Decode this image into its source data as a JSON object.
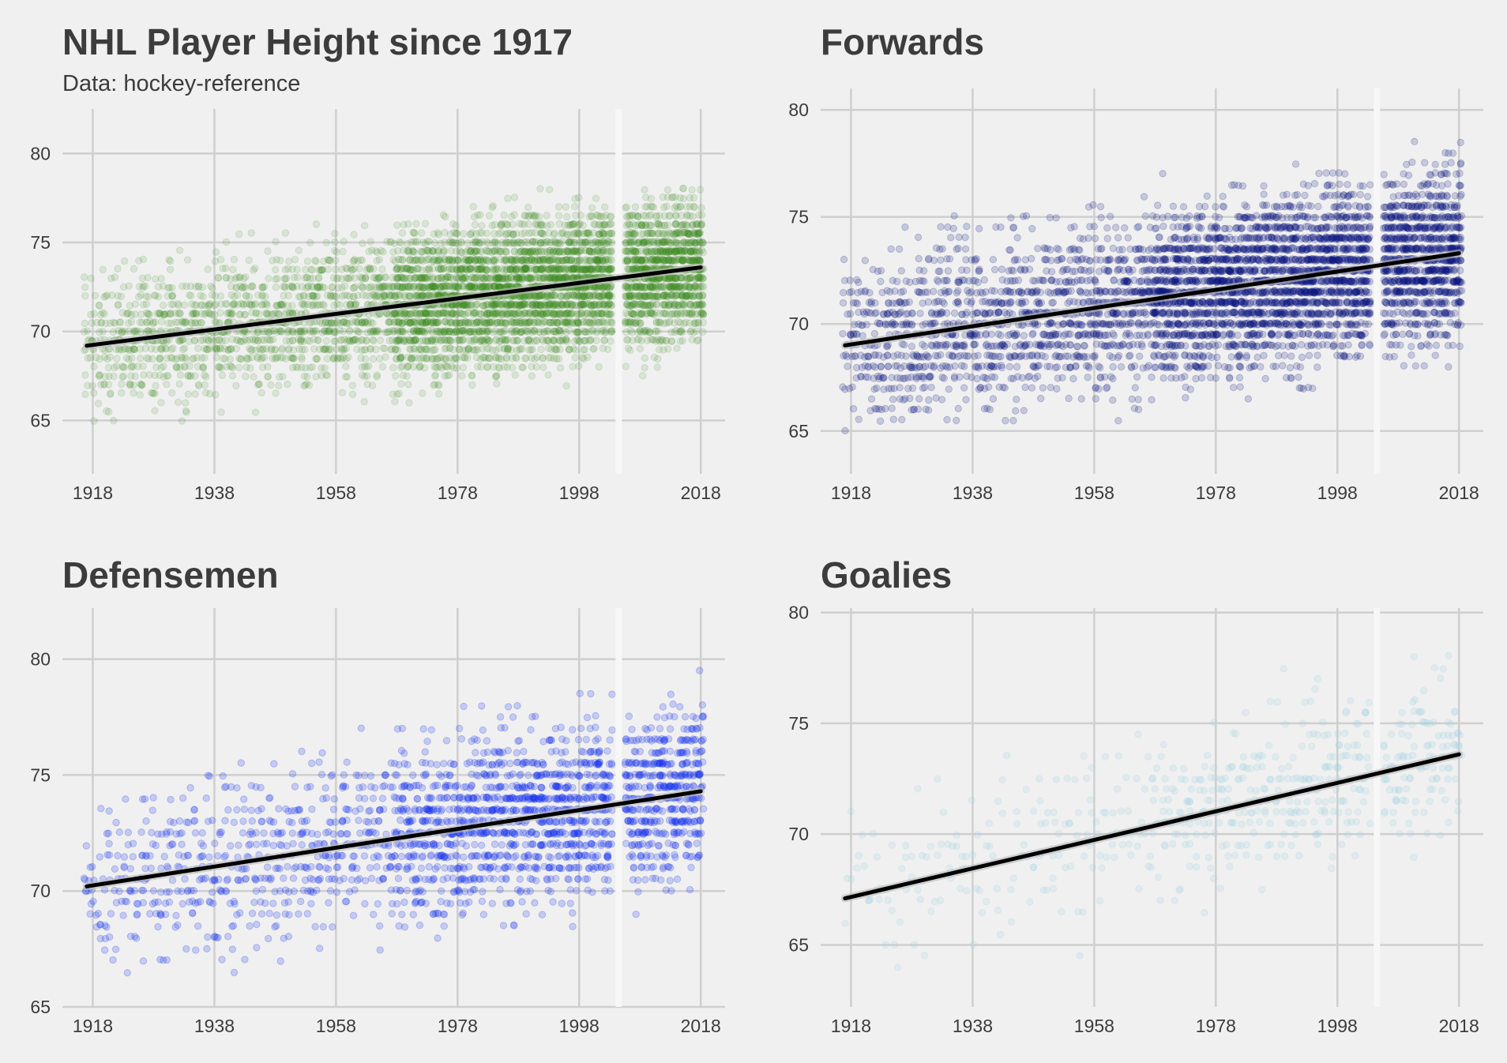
{
  "chart_data": [
    {
      "type": "scatter",
      "title": "NHL Player Height since 1917",
      "subtitle": "Data: hockey-reference",
      "xlabel": "",
      "ylabel": "",
      "xlim": [
        1913,
        2022
      ],
      "ylim": [
        62,
        82.5
      ],
      "x_ticks": [
        "1918",
        "1938",
        "1958",
        "1978",
        "1998",
        "2018"
      ],
      "y_ticks": [
        "65",
        "70",
        "75",
        "80"
      ],
      "grid": true,
      "legend": "none",
      "point_color": "#3a8a22",
      "gap_season": 2004.5,
      "trend": {
        "x": [
          1917,
          2018
        ],
        "y": [
          69.2,
          73.6
        ]
      },
      "density": [
        [
          1917,
          0.5
        ],
        [
          1925,
          0.8
        ],
        [
          1942,
          0.9
        ],
        [
          1967,
          1.2
        ],
        [
          1968,
          2.6
        ],
        [
          1990,
          3.2
        ],
        [
          2018,
          3.2
        ]
      ],
      "y_spread": [
        [
          1917,
          -4.2,
          5.0
        ],
        [
          1940,
          -5.5,
          5.5
        ],
        [
          1968,
          -6.0,
          6.0
        ],
        [
          2000,
          -6.0,
          6.5
        ],
        [
          2018,
          -6.0,
          6.5
        ]
      ],
      "opacity": 0.13
    },
    {
      "type": "scatter",
      "title": "Forwards",
      "xlabel": "",
      "ylabel": "",
      "xlim": [
        1913,
        2022
      ],
      "ylim": [
        63,
        81
      ],
      "x_ticks": [
        "1918",
        "1938",
        "1958",
        "1978",
        "1998",
        "2018"
      ],
      "y_ticks": [
        "65",
        "70",
        "75",
        "80"
      ],
      "grid": true,
      "legend": "none",
      "point_color": "#0c1880",
      "gap_season": 2004.5,
      "trend": {
        "x": [
          1917,
          2018
        ],
        "y": [
          69.0,
          73.3
        ]
      },
      "density": [
        [
          1917,
          0.5
        ],
        [
          1925,
          0.8
        ],
        [
          1942,
          0.9
        ],
        [
          1967,
          1.2
        ],
        [
          1968,
          2.2
        ],
        [
          1990,
          2.6
        ],
        [
          2018,
          2.6
        ]
      ],
      "y_spread": [
        [
          1917,
          -4.0,
          5.0
        ],
        [
          1940,
          -5.0,
          5.5
        ],
        [
          1968,
          -5.5,
          6.0
        ],
        [
          2000,
          -5.5,
          7.0
        ],
        [
          2018,
          -5.5,
          7.0
        ]
      ],
      "opacity": 0.18
    },
    {
      "type": "scatter",
      "title": "Defensemen",
      "xlabel": "",
      "ylabel": "",
      "xlim": [
        1913,
        2022
      ],
      "ylim": [
        65,
        82.2
      ],
      "x_ticks": [
        "1918",
        "1938",
        "1958",
        "1978",
        "1998",
        "2018"
      ],
      "y_ticks": [
        "65",
        "70",
        "75",
        "80"
      ],
      "grid": true,
      "legend": "none",
      "point_color": "#1430f0",
      "gap_season": 2004.5,
      "trend": {
        "x": [
          1917,
          2018
        ],
        "y": [
          70.2,
          74.3
        ]
      },
      "density": [
        [
          1917,
          0.25
        ],
        [
          1925,
          0.35
        ],
        [
          1942,
          0.4
        ],
        [
          1967,
          0.5
        ],
        [
          1968,
          0.9
        ],
        [
          1990,
          1.2
        ],
        [
          2018,
          1.3
        ]
      ],
      "y_spread": [
        [
          1917,
          -3.5,
          4.0
        ],
        [
          1940,
          -4.5,
          4.5
        ],
        [
          1968,
          -4.5,
          5.0
        ],
        [
          2000,
          -5.0,
          6.5
        ],
        [
          2018,
          -5.0,
          6.5
        ]
      ],
      "opacity": 0.2
    },
    {
      "type": "scatter",
      "title": "Goalies",
      "xlabel": "",
      "ylabel": "",
      "xlim": [
        1913,
        2022
      ],
      "ylim": [
        62.2,
        80.2
      ],
      "x_ticks": [
        "1918",
        "1938",
        "1958",
        "1978",
        "1998",
        "2018"
      ],
      "y_ticks": [
        "65",
        "70",
        "75",
        "80"
      ],
      "grid": true,
      "legend": "none",
      "point_color": "#a8d4e2",
      "gap_season": 2004.5,
      "trend": {
        "x": [
          1917,
          2018
        ],
        "y": [
          67.1,
          73.6
        ]
      },
      "density": [
        [
          1917,
          0.08
        ],
        [
          1925,
          0.1
        ],
        [
          1942,
          0.12
        ],
        [
          1967,
          0.14
        ],
        [
          1968,
          0.25
        ],
        [
          1990,
          0.3
        ],
        [
          2018,
          0.32
        ]
      ],
      "y_spread": [
        [
          1917,
          -4.0,
          5.0
        ],
        [
          1940,
          -5.0,
          5.0
        ],
        [
          1968,
          -5.0,
          5.5
        ],
        [
          2000,
          -5.0,
          6.0
        ],
        [
          2018,
          -5.0,
          6.0
        ]
      ],
      "opacity": 0.22
    }
  ]
}
